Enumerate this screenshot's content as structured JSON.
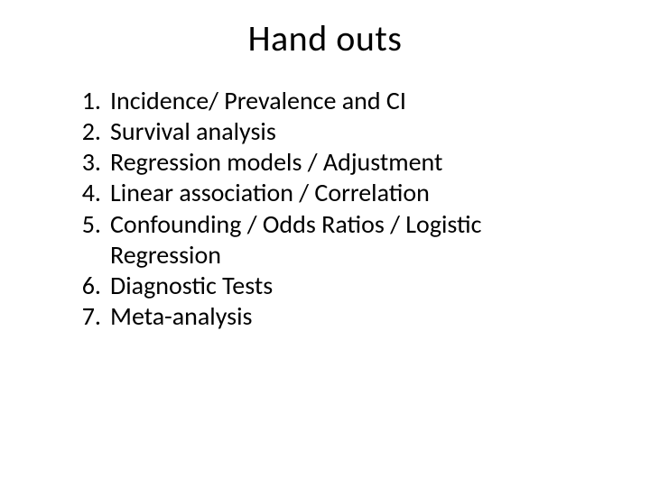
{
  "slide": {
    "title": "Hand outs",
    "items": [
      "Incidence/ Prevalence and CI",
      "Survival analysis",
      "Regression models / Adjustment",
      "Linear association / Correlation",
      "Confounding / Odds Ratios / Logistic Regression",
      "Diagnostic Tests",
      "Meta-analysis"
    ],
    "style": {
      "background_color": "#ffffff",
      "text_color": "#000000",
      "title_fontsize_pt": 40,
      "body_fontsize_pt": 28,
      "font_family": "Calibri",
      "title_align": "center",
      "list_type": "decimal"
    }
  }
}
